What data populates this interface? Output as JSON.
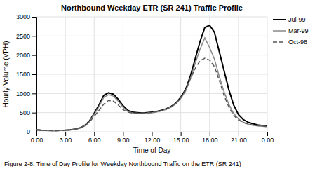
{
  "chart_data": {
    "type": "line",
    "title": "Northbound Weekday ETR (SR 241) Traffic Profile",
    "x_label": "Time of Day",
    "y_label": "Hourly Volume (VPH)",
    "caption": "Figure 2-8. Time of Day Profile for Weekday Northbound Traffic on the ETR (SR 241)",
    "x": [
      0,
      0.5,
      1,
      1.5,
      2,
      2.5,
      3,
      3.5,
      4,
      4.5,
      5,
      5.5,
      6,
      6.5,
      7,
      7.5,
      8,
      8.5,
      9,
      9.5,
      10,
      10.5,
      11,
      11.5,
      12,
      12.5,
      13,
      13.5,
      14,
      14.5,
      15,
      15.5,
      16,
      16.5,
      17,
      17.5,
      18,
      18.5,
      19,
      19.5,
      20,
      20.5,
      21,
      21.5,
      22,
      22.5,
      23,
      23.5,
      24
    ],
    "series": [
      {
        "name": "Jul-99",
        "color": "#000000",
        "line_style": "solid",
        "values": [
          50,
          40,
          35,
          30,
          30,
          35,
          40,
          50,
          70,
          100,
          160,
          280,
          480,
          700,
          950,
          1020,
          980,
          850,
          680,
          560,
          510,
          500,
          490,
          500,
          510,
          530,
          560,
          600,
          660,
          750,
          900,
          1100,
          1450,
          1900,
          2350,
          2720,
          2780,
          2600,
          2100,
          1600,
          1100,
          700,
          450,
          320,
          250,
          210,
          180,
          160,
          150
        ]
      },
      {
        "name": "Mar-99",
        "color": "#888888",
        "line_style": "solid",
        "values": [
          50,
          40,
          35,
          30,
          28,
          32,
          38,
          48,
          65,
          95,
          150,
          260,
          450,
          660,
          900,
          970,
          930,
          800,
          640,
          530,
          490,
          480,
          475,
          485,
          495,
          515,
          545,
          585,
          645,
          730,
          870,
          1060,
          1380,
          1780,
          2150,
          2450,
          2200,
          1900,
          1450,
          1050,
          720,
          480,
          340,
          250,
          200,
          170,
          150,
          140,
          130
        ]
      },
      {
        "name": "Oct-98",
        "color": "#555555",
        "line_style": "dashed",
        "values": [
          50,
          40,
          35,
          30,
          28,
          32,
          38,
          48,
          65,
          95,
          150,
          250,
          400,
          560,
          720,
          820,
          800,
          700,
          580,
          510,
          490,
          490,
          490,
          500,
          510,
          525,
          550,
          590,
          650,
          740,
          890,
          1090,
          1380,
          1650,
          1850,
          1920,
          1870,
          1700,
          1350,
          950,
          650,
          430,
          310,
          240,
          200,
          175,
          160,
          150,
          140
        ]
      }
    ],
    "xlim": [
      0,
      24
    ],
    "xticks": [
      {
        "value": 0,
        "label": "0:00"
      },
      {
        "value": 3,
        "label": "3:00"
      },
      {
        "value": 6,
        "label": "6:00"
      },
      {
        "value": 9,
        "label": "9:00"
      },
      {
        "value": 12,
        "label": "12:00"
      },
      {
        "value": 15,
        "label": "15:00"
      },
      {
        "value": 18,
        "label": "18:00"
      },
      {
        "value": 21,
        "label": "21:00"
      },
      {
        "value": 24,
        "label": "0:00"
      }
    ],
    "ylim": [
      0,
      3000
    ],
    "yticks": [
      0,
      500,
      1000,
      1500,
      2000,
      2500,
      3000
    ],
    "grid": true,
    "legend": "right"
  }
}
